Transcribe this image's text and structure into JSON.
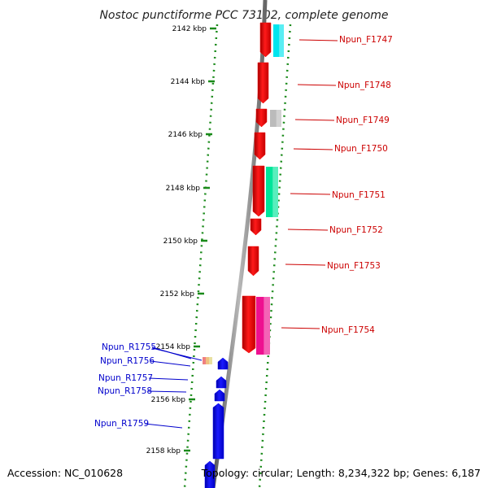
{
  "title": "Nostoc punctiforme PCC 73102, complete genome",
  "footer": {
    "accession": "Accession: NC_010628",
    "summary": "Topology: circular; Length: 8,234,322 bp; Genes: 6,187"
  },
  "ticks": [
    {
      "label": "2142 kbp"
    },
    {
      "label": "2144 kbp"
    },
    {
      "label": "2146 kbp"
    },
    {
      "label": "2148 kbp"
    },
    {
      "label": "2150 kbp"
    },
    {
      "label": "2152 kbp"
    },
    {
      "label": "2154 kbp"
    },
    {
      "label": "2156 kbp"
    },
    {
      "label": "2158 kbp"
    }
  ],
  "forward_genes": [
    {
      "label": "Npun_F1747",
      "gene_color": "#ee0000",
      "cog_color": "#00e5ee"
    },
    {
      "label": "Npun_F1748",
      "gene_color": "#ee0000",
      "cog_color": null
    },
    {
      "label": "Npun_F1749",
      "gene_color": "#ee0000",
      "cog_color": "#bbbbbb"
    },
    {
      "label": "Npun_F1750",
      "gene_color": "#ee0000",
      "cog_color": null
    },
    {
      "label": "Npun_F1751",
      "gene_color": "#ee0000",
      "cog_color": "#00e59a"
    },
    {
      "label": "Npun_F1752",
      "gene_color": "#ee0000",
      "cog_color": null
    },
    {
      "label": "Npun_F1753",
      "gene_color": "#ee0000",
      "cog_color": null
    },
    {
      "label": "Npun_F1754",
      "gene_color": "#ee0000",
      "cog_color": "#ee1090"
    }
  ],
  "reverse_genes": [
    {
      "label": "Npun_R1755",
      "gene_color": "#0000ee"
    },
    {
      "label": "Npun_R1756",
      "gene_color": "#0000ee"
    },
    {
      "label": "Npun_R1757",
      "gene_color": "#0000ee"
    },
    {
      "label": "Npun_R1758",
      "gene_color": "#0000ee"
    },
    {
      "label": "Npun_R1759",
      "gene_color": "#0000ee"
    }
  ],
  "colors": {
    "forward_label": "#cc0000",
    "reverse_label": "#0000cc",
    "backbone": "#888888",
    "tick_marks": "#1a8a1a"
  }
}
